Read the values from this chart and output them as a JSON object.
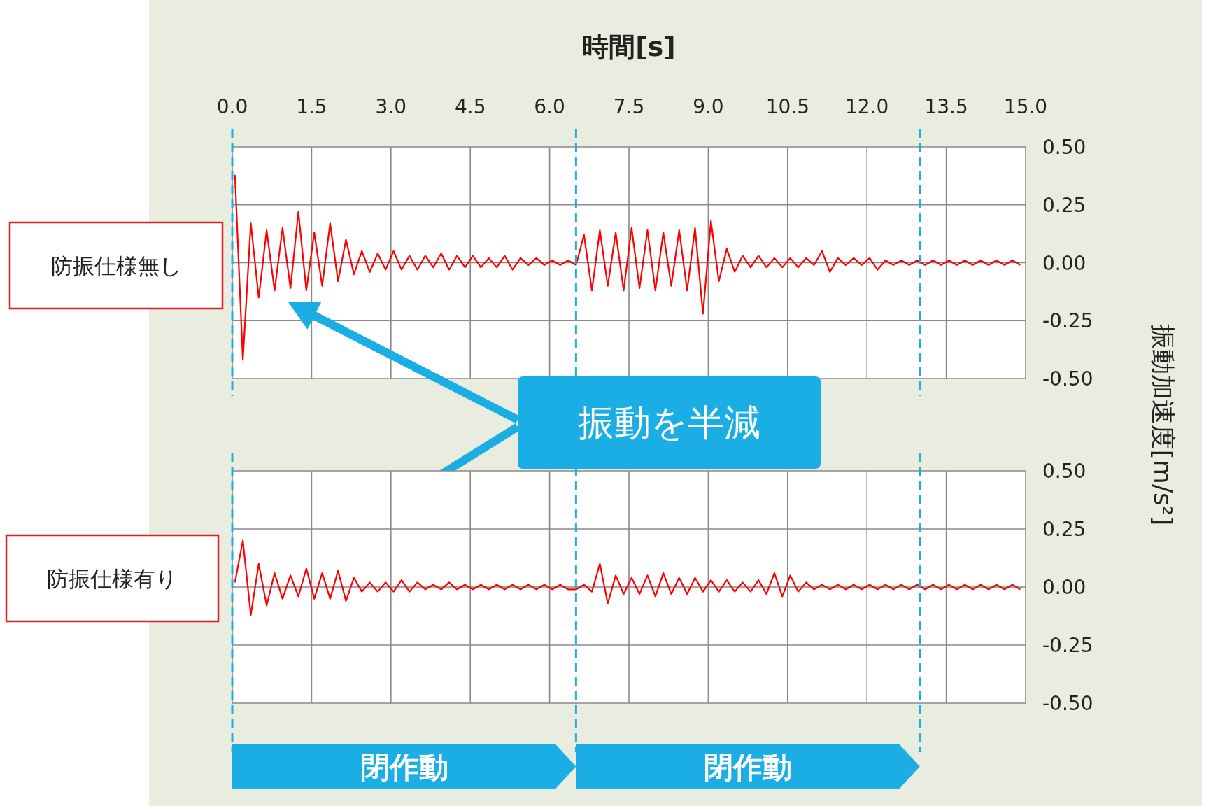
{
  "chart_data": [
    {
      "type": "line",
      "title": "防振仕様無し",
      "xlabel": "時間[s]",
      "ylabel": "振動加速度[m/s²]",
      "annotations": [
        "振動を半減"
      ],
      "grid": true,
      "xlim": [
        0,
        15
      ],
      "xticks": [
        {
          "value": 0,
          "label": "0.0"
        },
        {
          "value": 1.5,
          "label": "1.5"
        },
        {
          "value": 3,
          "label": "3.0"
        },
        {
          "value": 4.5,
          "label": "4.5"
        },
        {
          "value": 6,
          "label": "6.0"
        },
        {
          "value": 7.5,
          "label": "7.5"
        },
        {
          "value": 9,
          "label": "9.0"
        },
        {
          "value": 10.5,
          "label": "10.5"
        },
        {
          "value": 12,
          "label": "12.0"
        },
        {
          "value": 13.5,
          "label": "13.5"
        },
        {
          "value": 15,
          "label": "15.0"
        }
      ],
      "ylim": [
        -0.5,
        0.5
      ],
      "yticks": [
        {
          "value": 0.5,
          "label": "0.50"
        },
        {
          "value": 0.25,
          "label": "0.25"
        },
        {
          "value": 0,
          "label": "0.00"
        },
        {
          "value": -0.25,
          "label": "-0.25"
        },
        {
          "value": -0.5,
          "label": "-0.50"
        }
      ],
      "ref_lines": [
        {
          "axis": "x",
          "value": 0,
          "color": "#1eaee5",
          "line_style": "dashed"
        },
        {
          "axis": "x",
          "value": 6.5,
          "color": "#1eaee5",
          "line_style": "dashed"
        },
        {
          "axis": "x",
          "value": 13,
          "color": "#1eaee5",
          "line_style": "dashed"
        }
      ],
      "x": [
        0.05,
        0.2,
        0.35,
        0.5,
        0.65,
        0.8,
        0.95,
        1.1,
        1.25,
        1.4,
        1.55,
        1.7,
        1.85,
        2,
        2.15,
        2.3,
        2.45,
        2.6,
        2.75,
        2.9,
        3.05,
        3.2,
        3.35,
        3.5,
        3.65,
        3.8,
        3.95,
        4.1,
        4.25,
        4.4,
        4.55,
        4.7,
        4.85,
        5,
        5.15,
        5.3,
        5.45,
        5.6,
        5.75,
        5.9,
        6.05,
        6.2,
        6.35,
        6.5,
        6.65,
        6.8,
        6.95,
        7.1,
        7.25,
        7.4,
        7.55,
        7.7,
        7.85,
        8,
        8.15,
        8.3,
        8.45,
        8.6,
        8.75,
        8.9,
        9.05,
        9.2,
        9.35,
        9.5,
        9.65,
        9.8,
        9.95,
        10.1,
        10.25,
        10.4,
        10.55,
        10.7,
        10.85,
        11,
        11.15,
        11.3,
        11.45,
        11.6,
        11.75,
        11.9,
        12.05,
        12.2,
        12.35,
        12.5,
        12.65,
        12.8,
        12.95,
        13.1,
        13.25,
        13.4,
        13.55,
        13.7,
        13.85,
        14,
        14.15,
        14.3,
        14.45,
        14.6,
        14.75,
        14.9
      ],
      "series": [
        {
          "color": "#ff0000",
          "values": [
            0.38,
            -0.42,
            0.17,
            -0.15,
            0.14,
            -0.12,
            0.15,
            -0.11,
            0.22,
            -0.12,
            0.13,
            -0.1,
            0.17,
            -0.08,
            0.1,
            -0.05,
            0.05,
            -0.04,
            0.04,
            -0.03,
            0.05,
            -0.03,
            0.03,
            -0.03,
            0.03,
            -0.02,
            0.04,
            -0.03,
            0.03,
            -0.02,
            0.03,
            -0.02,
            0.02,
            -0.02,
            0.03,
            -0.03,
            0.02,
            -0.01,
            0.02,
            -0.01,
            0.01,
            -0.01,
            0.01,
            -0.01,
            0.12,
            -0.12,
            0.14,
            -0.1,
            0.13,
            -0.12,
            0.15,
            -0.11,
            0.14,
            -0.12,
            0.13,
            -0.1,
            0.14,
            -0.12,
            0.15,
            -0.22,
            0.18,
            -0.08,
            0.06,
            -0.04,
            0.03,
            -0.02,
            0.03,
            -0.02,
            0.02,
            -0.02,
            0.02,
            -0.02,
            0.02,
            -0.01,
            0.05,
            -0.04,
            0.02,
            -0.01,
            0.02,
            -0.01,
            0.02,
            -0.03,
            0.01,
            -0.01,
            0.01,
            -0.01,
            0.01,
            -0.01,
            0.01,
            -0.01,
            0.01,
            -0.01,
            0.01,
            -0.01,
            0.01,
            -0.01,
            0.01,
            -0.01,
            0.01,
            -0.01
          ]
        }
      ]
    },
    {
      "type": "line",
      "title": "防振仕様有り",
      "grid": true,
      "tick_labels": "y",
      "annotations": [
        "閉作動",
        "閉作動"
      ],
      "xlim": [
        0,
        15
      ],
      "xticks": [
        0,
        1.5,
        3,
        4.5,
        6,
        7.5,
        9,
        10.5,
        12,
        13.5,
        15
      ],
      "ylim": [
        -0.5,
        0.5
      ],
      "yticks": [
        {
          "value": 0.5,
          "label": "0.50"
        },
        {
          "value": 0.25,
          "label": "0.25"
        },
        {
          "value": 0,
          "label": "0.00"
        },
        {
          "value": -0.25,
          "label": "-0.25"
        },
        {
          "value": -0.5,
          "label": "-0.50"
        }
      ],
      "ref_lines": [
        {
          "axis": "x",
          "value": 0,
          "color": "#1eaee5",
          "line_style": "dashed"
        },
        {
          "axis": "x",
          "value": 6.5,
          "color": "#1eaee5",
          "line_style": "dashed"
        },
        {
          "axis": "x",
          "value": 13,
          "color": "#1eaee5",
          "line_style": "dashed"
        }
      ],
      "x": [
        0.05,
        0.2,
        0.35,
        0.5,
        0.65,
        0.8,
        0.95,
        1.1,
        1.25,
        1.4,
        1.55,
        1.7,
        1.85,
        2,
        2.15,
        2.3,
        2.45,
        2.6,
        2.75,
        2.9,
        3.05,
        3.2,
        3.35,
        3.5,
        3.65,
        3.8,
        3.95,
        4.1,
        4.25,
        4.4,
        4.55,
        4.7,
        4.85,
        5,
        5.15,
        5.3,
        5.45,
        5.6,
        5.75,
        5.9,
        6.05,
        6.2,
        6.35,
        6.5,
        6.65,
        6.8,
        6.95,
        7.1,
        7.25,
        7.4,
        7.55,
        7.7,
        7.85,
        8,
        8.15,
        8.3,
        8.45,
        8.6,
        8.75,
        8.9,
        9.05,
        9.2,
        9.35,
        9.5,
        9.65,
        9.8,
        9.95,
        10.1,
        10.25,
        10.4,
        10.55,
        10.7,
        10.85,
        11,
        11.15,
        11.3,
        11.45,
        11.6,
        11.75,
        11.9,
        12.05,
        12.2,
        12.35,
        12.5,
        12.65,
        12.8,
        12.95,
        13.1,
        13.25,
        13.4,
        13.55,
        13.7,
        13.85,
        14,
        14.15,
        14.3,
        14.45,
        14.6,
        14.75,
        14.9
      ],
      "series": [
        {
          "color": "#ff0000",
          "values": [
            0.02,
            0.2,
            -0.12,
            0.1,
            -0.08,
            0.06,
            -0.05,
            0.05,
            -0.04,
            0.08,
            -0.05,
            0.06,
            -0.05,
            0.07,
            -0.06,
            0.04,
            -0.02,
            0.02,
            -0.02,
            0.02,
            -0.02,
            0.03,
            -0.02,
            0.02,
            -0.01,
            0.01,
            -0.01,
            0.02,
            -0.01,
            0.01,
            -0.01,
            0.01,
            -0.01,
            0.01,
            -0.01,
            0.01,
            -0.01,
            0.01,
            -0.01,
            0.01,
            -0.01,
            0.01,
            -0.01,
            -0.01,
            0.01,
            -0.02,
            0.1,
            -0.07,
            0.05,
            -0.03,
            0.04,
            -0.03,
            0.05,
            -0.04,
            0.06,
            -0.03,
            0.04,
            -0.03,
            0.04,
            -0.02,
            0.03,
            -0.02,
            0.03,
            -0.02,
            0.02,
            -0.02,
            0.03,
            -0.03,
            0.06,
            -0.04,
            0.05,
            -0.02,
            0.02,
            -0.01,
            0.01,
            -0.01,
            0.01,
            -0.01,
            0.01,
            -0.01,
            0.01,
            -0.01,
            0.01,
            -0.01,
            0.01,
            -0.01,
            0.01,
            -0.01,
            0.01,
            -0.01,
            0.01,
            -0.01,
            0.01,
            -0.01,
            0.01,
            -0.01,
            0.01,
            -0.01,
            0.01,
            -0.01
          ]
        }
      ]
    }
  ]
}
